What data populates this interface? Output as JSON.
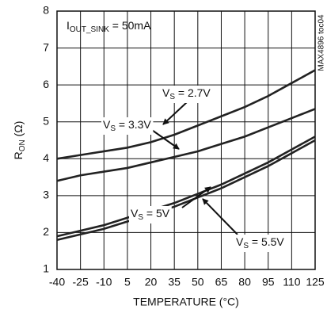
{
  "chart_data": {
    "type": "line",
    "annotation": {
      "main": "I",
      "sub": "OUT_SINK",
      "rest": " = 50mA"
    },
    "side_note": "MAX4896 toc04",
    "xlabel": "TEMPERATURE (°C)",
    "ylabel": {
      "main": "R",
      "sub": "ON",
      "rest": " (Ω)"
    },
    "x": [
      -40,
      -25,
      -10,
      5,
      20,
      35,
      50,
      65,
      80,
      95,
      110,
      125
    ],
    "xlim": [
      -40,
      125
    ],
    "xticks": [
      -40,
      -25,
      -10,
      5,
      20,
      35,
      50,
      65,
      80,
      95,
      110,
      125
    ],
    "ylim": [
      1,
      8
    ],
    "yticks": [
      1,
      2,
      3,
      4,
      5,
      6,
      7,
      8
    ],
    "grid": true,
    "series": [
      {
        "name": {
          "main": "V",
          "sub": "S",
          "rest": " = 2.7V"
        },
        "color": "#222222",
        "values": [
          4.0,
          4.1,
          4.2,
          4.3,
          4.45,
          4.65,
          4.9,
          5.15,
          5.4,
          5.7,
          6.05,
          6.4
        ]
      },
      {
        "name": {
          "main": "V",
          "sub": "S",
          "rest": " = 3.3V"
        },
        "color": "#222222",
        "values": [
          3.4,
          3.55,
          3.65,
          3.75,
          3.9,
          4.05,
          4.2,
          4.4,
          4.6,
          4.85,
          5.1,
          5.35
        ]
      },
      {
        "name": {
          "main": "V",
          "sub": "S",
          "rest": " = 5V"
        },
        "color": "#222222",
        "values": [
          1.9,
          2.05,
          2.2,
          2.4,
          2.6,
          2.8,
          3.05,
          3.3,
          3.6,
          3.9,
          4.25,
          4.6
        ]
      },
      {
        "name": {
          "main": "V",
          "sub": "S",
          "rest": " = 5.5V"
        },
        "color": "#222222",
        "values": [
          1.8,
          1.95,
          2.1,
          2.3,
          2.5,
          2.7,
          2.95,
          3.2,
          3.5,
          3.8,
          4.15,
          4.5
        ]
      }
    ]
  }
}
